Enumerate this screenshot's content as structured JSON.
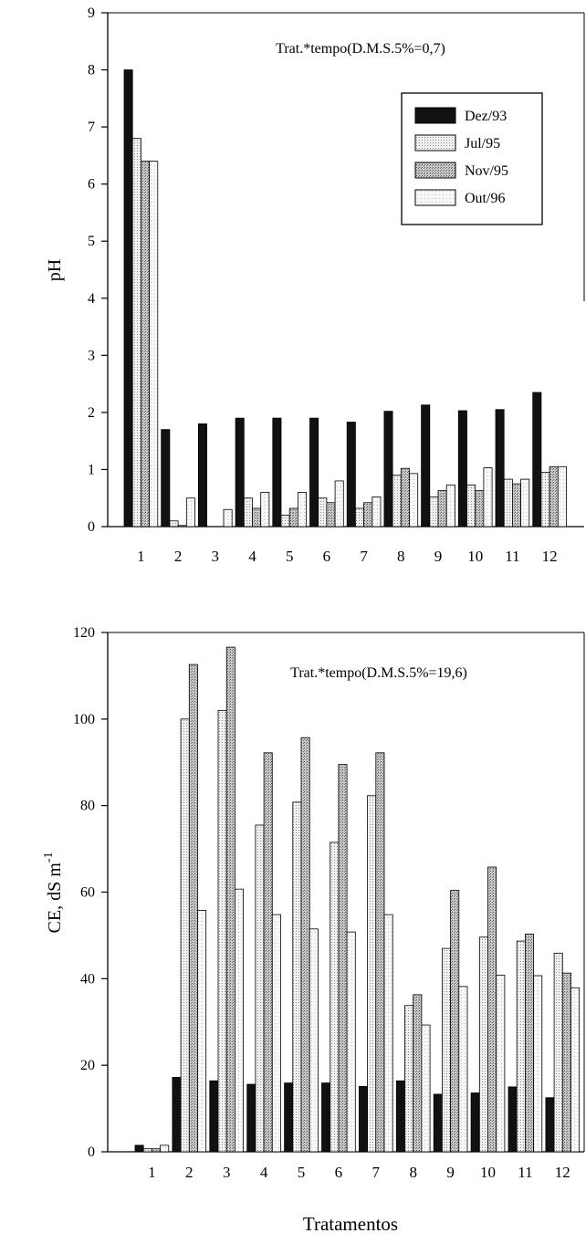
{
  "chart_data": [
    {
      "type": "bar",
      "annotation": "Trat.*tempo(D.M.S.5%=0,7)",
      "ylabel": "pH",
      "xlabel": "",
      "ylim": [
        0,
        9
      ],
      "yticks": [
        "0",
        "1",
        "2",
        "3",
        "4",
        "5",
        "6",
        "7",
        "8",
        "9"
      ],
      "categories": [
        "1",
        "2",
        "3",
        "4",
        "5",
        "6",
        "7",
        "8",
        "9",
        "10",
        "11",
        "12"
      ],
      "legend_position": "top-right",
      "series": [
        {
          "name": "Dez/93",
          "values": [
            8.0,
            1.7,
            1.8,
            1.9,
            1.9,
            1.9,
            1.83,
            2.02,
            2.13,
            2.03,
            2.05,
            2.35
          ]
        },
        {
          "name": "Jul/95",
          "values": [
            6.8,
            0.1,
            0.0,
            0.5,
            0.2,
            0.5,
            0.32,
            0.9,
            0.52,
            0.73,
            0.83,
            0.95
          ]
        },
        {
          "name": "Nov/95",
          "values": [
            6.4,
            0.02,
            0.0,
            0.32,
            0.32,
            0.42,
            0.42,
            1.02,
            0.63,
            0.63,
            0.75,
            1.05
          ]
        },
        {
          "name": "Out/96",
          "values": [
            6.4,
            0.5,
            0.3,
            0.6,
            0.6,
            0.8,
            0.52,
            0.93,
            0.73,
            1.03,
            0.83,
            1.05
          ]
        }
      ]
    },
    {
      "type": "bar",
      "annotation": "Trat.*tempo(D.M.S.5%=19,6)",
      "ylabel": "CE, dS m",
      "ylabel_superscript": "-1",
      "xlabel": "Tratamentos",
      "ylim": [
        0,
        120
      ],
      "yticks": [
        "0",
        "20",
        "40",
        "60",
        "80",
        "100",
        "120"
      ],
      "categories": [
        "1",
        "2",
        "3",
        "4",
        "5",
        "6",
        "7",
        "8",
        "9",
        "10",
        "11",
        "12"
      ],
      "series": [
        {
          "name": "Dez/93",
          "values": [
            1.5,
            17.2,
            16.4,
            15.6,
            15.9,
            15.9,
            15.1,
            16.4,
            13.3,
            13.6,
            15.0,
            12.5
          ]
        },
        {
          "name": "Jul/95",
          "values": [
            0.7,
            100.0,
            102.0,
            75.5,
            80.8,
            71.5,
            82.3,
            33.8,
            47.0,
            49.6,
            48.7,
            45.9
          ]
        },
        {
          "name": "Nov/95",
          "values": [
            0.7,
            112.6,
            116.6,
            92.2,
            95.7,
            89.5,
            92.2,
            36.3,
            60.4,
            65.8,
            50.3,
            41.3
          ]
        },
        {
          "name": "Out/96",
          "values": [
            1.5,
            55.8,
            60.7,
            54.8,
            51.5,
            50.8,
            54.8,
            29.3,
            38.2,
            40.8,
            40.7,
            37.9
          ]
        }
      ]
    }
  ],
  "colors": {
    "dez93": "#111111",
    "jul95": "#e4e4e4",
    "nov95": "#b4b4b4",
    "out96": "#f3f3f3",
    "axis": "#000000"
  }
}
